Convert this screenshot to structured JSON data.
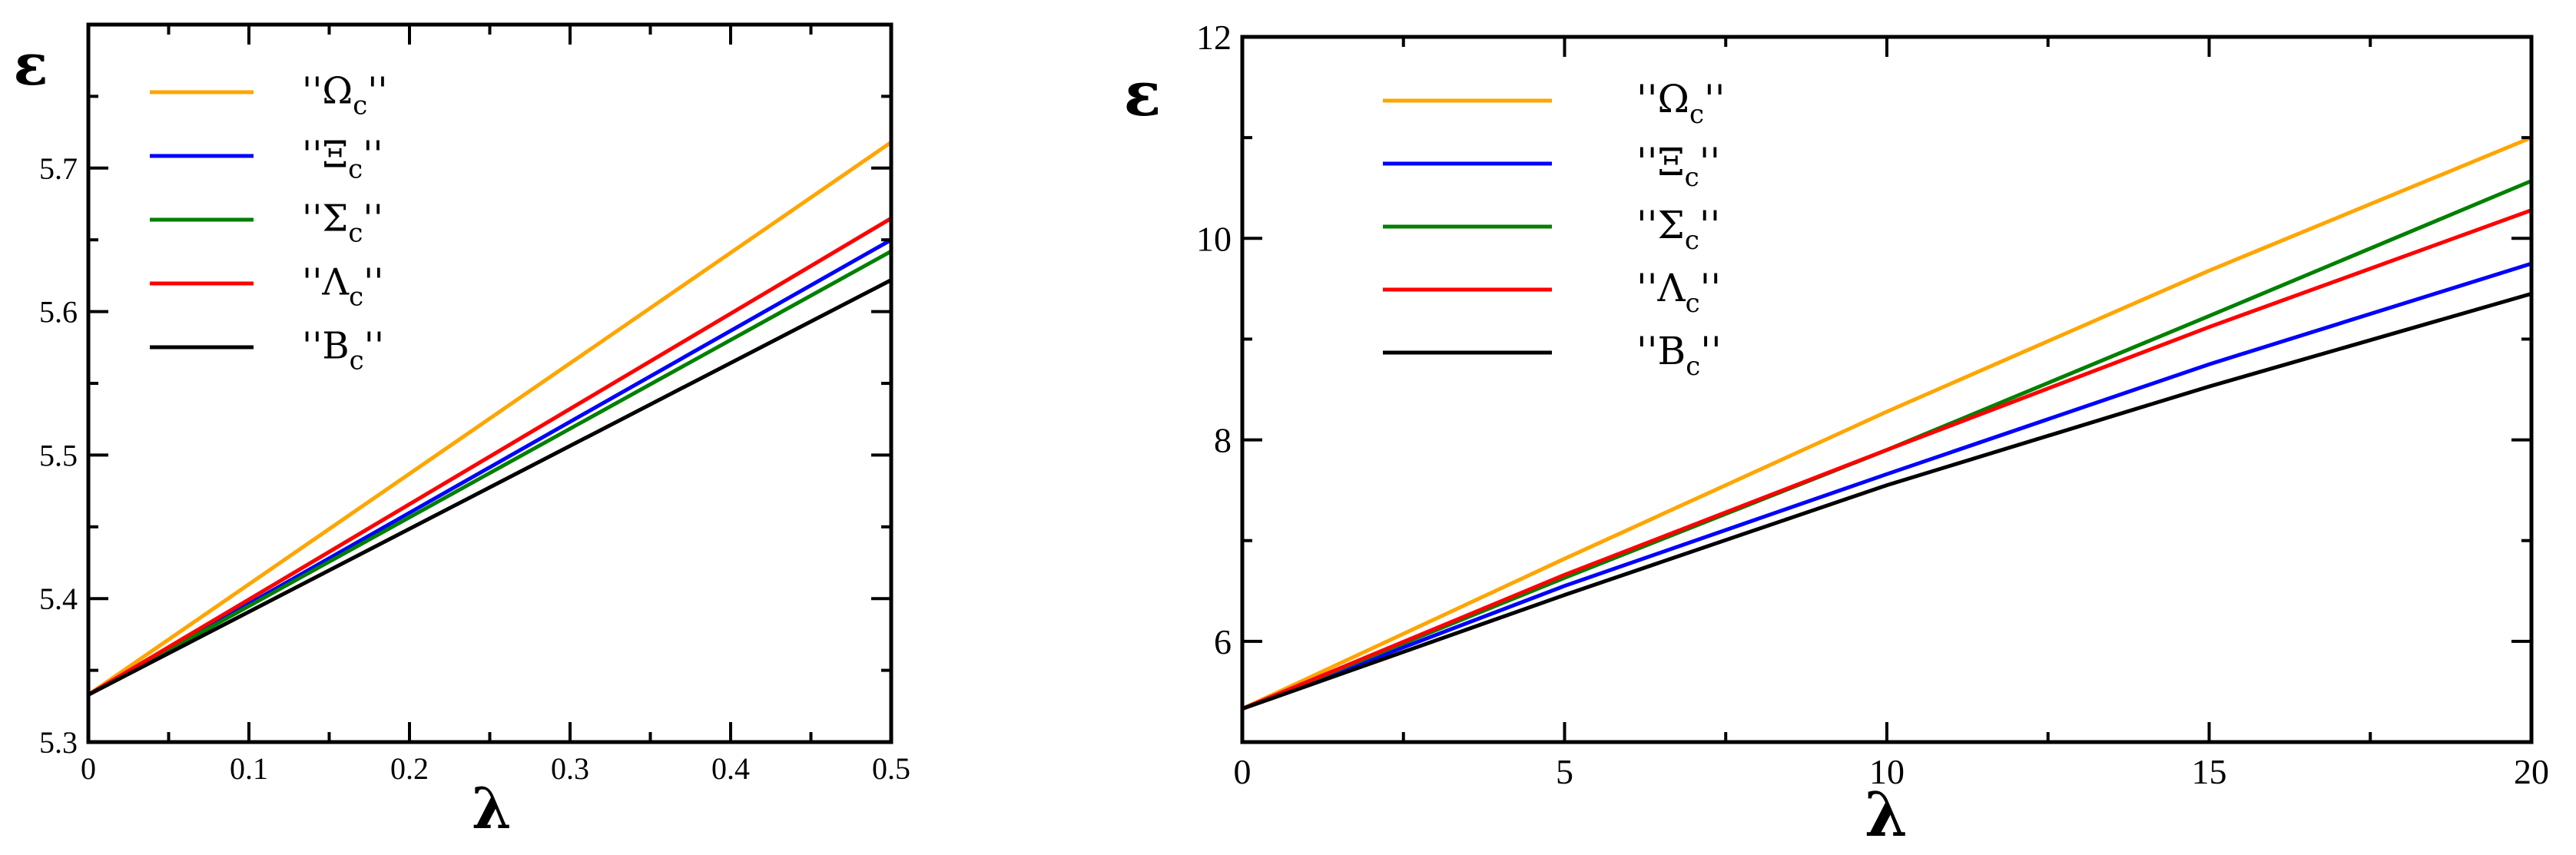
{
  "chart_data": [
    {
      "type": "line",
      "xlabel": "λ",
      "ylabel": "ε",
      "xlim": [
        0,
        0.5
      ],
      "ylim": [
        5.3,
        5.8
      ],
      "x_ticks": [
        0,
        0.1,
        0.2,
        0.3,
        0.4,
        0.5
      ],
      "x_tick_labels": [
        "0",
        "0.1",
        "0.2",
        "0.3",
        "0.4",
        "0.5"
      ],
      "y_ticks": [
        5.3,
        5.4,
        5.5,
        5.6,
        5.7
      ],
      "y_tick_labels": [
        "5.3",
        "5.4",
        "5.5",
        "5.6",
        "5.7"
      ],
      "grid": false,
      "legend": "top-left",
      "series": [
        {
          "name": "''Ω",
          "sub": "c",
          "tail": "''",
          "color": "#FFA500",
          "x": [
            0,
            0.5
          ],
          "y": [
            5.333,
            5.718
          ]
        },
        {
          "name": "''Ξ",
          "sub": "c",
          "tail": "''",
          "color": "#0000FF",
          "x": [
            0,
            0.5
          ],
          "y": [
            5.333,
            5.65
          ]
        },
        {
          "name": "''Σ",
          "sub": "c",
          "tail": "''",
          "color": "#008000",
          "x": [
            0,
            0.5
          ],
          "y": [
            5.333,
            5.642
          ]
        },
        {
          "name": "''Λ",
          "sub": "c",
          "tail": "''",
          "color": "#FF0000",
          "x": [
            0,
            0.5
          ],
          "y": [
            5.333,
            5.665
          ]
        },
        {
          "name": "''B",
          "sub": "c",
          "tail": "''",
          "color": "#000000",
          "x": [
            0,
            0.5
          ],
          "y": [
            5.333,
            5.622
          ]
        }
      ]
    },
    {
      "type": "line",
      "xlabel": "λ",
      "ylabel": "ε",
      "xlim": [
        0,
        20
      ],
      "ylim": [
        5,
        12
      ],
      "x_ticks": [
        0,
        5,
        10,
        15,
        20
      ],
      "x_tick_labels": [
        "0",
        "5",
        "10",
        "15",
        "20"
      ],
      "y_ticks": [
        6,
        8,
        10,
        12
      ],
      "y_tick_labels": [
        "6",
        "8",
        "10",
        "12"
      ],
      "grid": false,
      "legend": "top-left",
      "series": [
        {
          "name": "''Ω",
          "sub": "c",
          "tail": "''",
          "color": "#FFA500",
          "x": [
            0,
            5,
            10,
            15,
            20
          ],
          "y": [
            5.33,
            6.82,
            8.28,
            9.68,
            11.0
          ]
        },
        {
          "name": "''Ξ",
          "sub": "c",
          "tail": "''",
          "color": "#0000FF",
          "x": [
            0,
            5,
            10,
            15,
            20
          ],
          "y": [
            5.33,
            6.55,
            7.66,
            8.75,
            9.75
          ]
        },
        {
          "name": "''Σ",
          "sub": "c",
          "tail": "''",
          "color": "#008000",
          "x": [
            0,
            5,
            10,
            15,
            20
          ],
          "y": [
            5.33,
            6.63,
            7.9,
            9.23,
            10.57
          ]
        },
        {
          "name": "''Λ",
          "sub": "c",
          "tail": "''",
          "color": "#FF0000",
          "x": [
            0,
            5,
            10,
            15,
            20
          ],
          "y": [
            5.33,
            6.66,
            7.9,
            9.12,
            10.28
          ]
        },
        {
          "name": "''B",
          "sub": "c",
          "tail": "''",
          "color": "#000000",
          "x": [
            0,
            5,
            10,
            15,
            20
          ],
          "y": [
            5.33,
            6.46,
            7.55,
            8.53,
            9.45
          ]
        }
      ]
    }
  ]
}
